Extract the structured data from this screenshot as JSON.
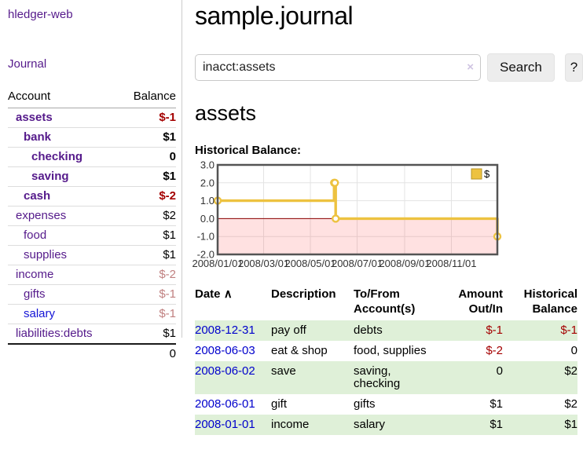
{
  "colors": {
    "link_purple": "#551a8b",
    "link_blue": "#0000cc",
    "negative_strong": "#a40000",
    "negative_faint": "#c08080",
    "row_shaded_green": "#dff0d8",
    "chart_line_gold": "#edc240",
    "chart_negative_fill": "#fbdcdc",
    "chart_zero_line": "#8b0000",
    "chart_border": "#545454"
  },
  "sidebar": {
    "brand": "hledger-web",
    "journal_link": "Journal",
    "table": {
      "account_header": "Account",
      "balance_header": "Balance",
      "rows": [
        {
          "label": "assets",
          "depth": 1,
          "bold": true,
          "link": "purple",
          "balance": "$-1",
          "neg": "strong"
        },
        {
          "label": "bank",
          "depth": 2,
          "bold": true,
          "link": "purple",
          "balance": "$1",
          "neg": null
        },
        {
          "label": "checking",
          "depth": 3,
          "bold": true,
          "link": "purple",
          "balance": "0",
          "neg": null
        },
        {
          "label": "saving",
          "depth": 3,
          "bold": true,
          "link": "purple",
          "balance": "$1",
          "neg": null
        },
        {
          "label": "cash",
          "depth": 2,
          "bold": true,
          "link": "purple",
          "balance": "$-2",
          "neg": "strong"
        },
        {
          "label": "expenses",
          "depth": 1,
          "bold": false,
          "link": "purple",
          "balance": "$2",
          "neg": null
        },
        {
          "label": "food",
          "depth": 2,
          "bold": false,
          "link": "purple",
          "balance": "$1",
          "neg": null
        },
        {
          "label": "supplies",
          "depth": 2,
          "bold": false,
          "link": "purple",
          "balance": "$1",
          "neg": null
        },
        {
          "label": "income",
          "depth": 1,
          "bold": false,
          "link": "purple",
          "balance": "$-2",
          "neg": "faint"
        },
        {
          "label": "gifts",
          "depth": 2,
          "bold": false,
          "link": "purple",
          "balance": "$-1",
          "neg": "faint"
        },
        {
          "label": "salary",
          "depth": 2,
          "bold": false,
          "link": "blue",
          "balance": "$-1",
          "neg": "faint"
        },
        {
          "label": "liabilities:debts",
          "depth": 1,
          "bold": false,
          "link": "purple",
          "balance": "$1",
          "neg": null
        }
      ],
      "total": "0"
    }
  },
  "main": {
    "title": "sample.journal",
    "search": {
      "value": "inacct:assets",
      "clear_icon": "×",
      "button_label": "Search",
      "help_label": "?"
    },
    "account_heading": "assets",
    "chart_label": "Historical Balance:"
  },
  "chart_data": {
    "type": "line",
    "step": true,
    "title": "Historical Balance",
    "series": [
      {
        "name": "$",
        "points": [
          [
            "2008-01-01",
            1
          ],
          [
            "2008-06-01",
            2
          ],
          [
            "2008-06-02",
            2
          ],
          [
            "2008-06-03",
            0
          ],
          [
            "2008-12-31",
            -1
          ]
        ]
      }
    ],
    "xlim": [
      "2008-01-01",
      "2008-12-31"
    ],
    "ylim": [
      -2,
      3
    ],
    "x_ticks": [
      "2008/01/01",
      "2008/03/01",
      "2008/05/01",
      "2008/07/01",
      "2008/09/01",
      "2008/11/01"
    ],
    "y_ticks": [
      3.0,
      2.0,
      1.0,
      0.0,
      -1.0,
      -2.0
    ],
    "grid": true,
    "legend": {
      "label": "$",
      "position": "top-right"
    },
    "negative_region_shaded": true
  },
  "register": {
    "headers": {
      "date": "Date",
      "sort_icon": "∧",
      "description": "Description",
      "accounts": "To/From Account(s)",
      "amount": "Amount Out/In",
      "balance": "Historical Balance"
    },
    "rows": [
      {
        "date": "2008-12-31",
        "description": "pay off",
        "accounts": "debts",
        "amount": "$-1",
        "amount_neg": true,
        "balance": "$-1",
        "balance_neg": true,
        "shaded": true
      },
      {
        "date": "2008-06-03",
        "description": "eat & shop",
        "accounts": "food, supplies",
        "amount": "$-2",
        "amount_neg": true,
        "balance": "0",
        "balance_neg": false,
        "shaded": false
      },
      {
        "date": "2008-06-02",
        "description": "save",
        "accounts": "saving, checking",
        "amount": "0",
        "amount_neg": false,
        "balance": "$2",
        "balance_neg": false,
        "shaded": true
      },
      {
        "date": "2008-06-01",
        "description": "gift",
        "accounts": "gifts",
        "amount": "$1",
        "amount_neg": false,
        "balance": "$2",
        "balance_neg": false,
        "shaded": false
      },
      {
        "date": "2008-01-01",
        "description": "income",
        "accounts": "salary",
        "amount": "$1",
        "amount_neg": false,
        "balance": "$1",
        "balance_neg": false,
        "shaded": true
      }
    ]
  }
}
